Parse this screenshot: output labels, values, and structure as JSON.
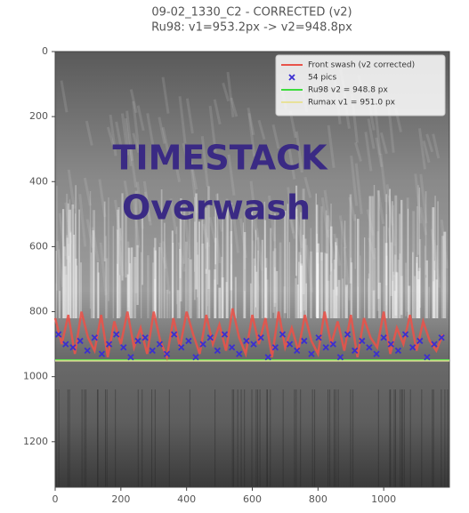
{
  "chart_data": {
    "type": "line",
    "title": [
      "09-02_1330_C2 - CORRECTED (v2)",
      "Ru98: v1=953.2px -> v2=948.8px"
    ],
    "annotations": [
      "TIMESTACK",
      "Overwash"
    ],
    "xlim": [
      0,
      1200
    ],
    "xticks": [
      0,
      200,
      400,
      600,
      800,
      1000
    ],
    "ylim": [
      0,
      1340
    ],
    "yticks": [
      0,
      200,
      400,
      600,
      800,
      1000,
      1200
    ],
    "y_inverted": true,
    "legend": "upper right",
    "series": [
      {
        "name": "Front swash (v2 corrected)",
        "type": "line",
        "color": "#e8534a",
        "x": [
          0,
          20,
          40,
          60,
          80,
          100,
          120,
          140,
          160,
          180,
          200,
          220,
          240,
          260,
          280,
          300,
          320,
          340,
          360,
          380,
          400,
          420,
          440,
          460,
          480,
          500,
          520,
          540,
          560,
          580,
          600,
          620,
          640,
          660,
          680,
          700,
          720,
          740,
          760,
          780,
          800,
          820,
          840,
          860,
          880,
          900,
          920,
          940,
          960,
          980,
          1000,
          1020,
          1040,
          1060,
          1080,
          1100,
          1120,
          1140,
          1160,
          1180
        ],
        "values": [
          820,
          900,
          810,
          930,
          800,
          880,
          920,
          810,
          940,
          830,
          900,
          800,
          910,
          850,
          930,
          800,
          890,
          940,
          820,
          910,
          800,
          870,
          930,
          810,
          900,
          840,
          920,
          790,
          880,
          930,
          810,
          900,
          820,
          940,
          800,
          910,
          850,
          920,
          810,
          890,
          930,
          800,
          900,
          830,
          920,
          810,
          940,
          820,
          880,
          910,
          800,
          930,
          850,
          900,
          810,
          920,
          830,
          890,
          920,
          870
        ]
      },
      {
        "name": "54 pics",
        "type": "scatter",
        "color": "#3b2fd0",
        "x": [
          10,
          32,
          54,
          76,
          98,
          120,
          142,
          164,
          186,
          208,
          230,
          252,
          274,
          296,
          318,
          340,
          362,
          384,
          406,
          428,
          450,
          472,
          494,
          516,
          538,
          560,
          582,
          604,
          626,
          648,
          670,
          692,
          714,
          736,
          758,
          780,
          802,
          824,
          846,
          868,
          890,
          912,
          934,
          956,
          978,
          1000,
          1022,
          1044,
          1066,
          1088,
          1110,
          1132,
          1154,
          1176
        ],
        "values": [
          870,
          900,
          910,
          890,
          920,
          880,
          930,
          900,
          870,
          910,
          940,
          890,
          880,
          920,
          900,
          930,
          870,
          910,
          890,
          940,
          900,
          880,
          920,
          870,
          910,
          930,
          890,
          900,
          880,
          940,
          910,
          870,
          900,
          920,
          890,
          930,
          880,
          910,
          900,
          940,
          870,
          920,
          890,
          910,
          930,
          880,
          900,
          920,
          870,
          910,
          890,
          940,
          900,
          880
        ]
      }
    ],
    "hlines": [
      {
        "name": "Ru98 v2 = 948.8 px",
        "color": "#3ddc3d",
        "value": 948.8
      },
      {
        "name": "Rumax v1 = 951.0 px",
        "color": "#e8e29a",
        "value": 951.0
      }
    ]
  }
}
